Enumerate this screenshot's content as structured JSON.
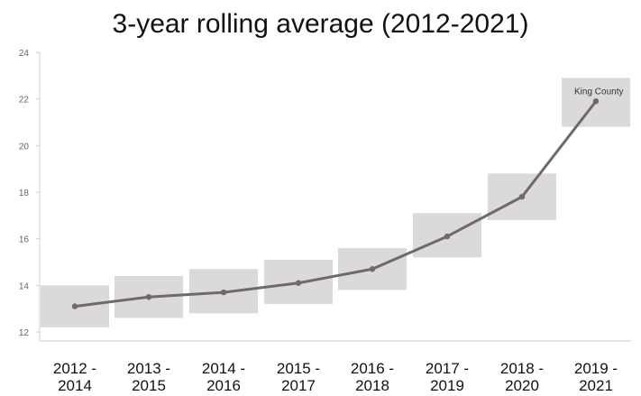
{
  "chart_data": {
    "type": "line",
    "title": "3-year rolling average (2012-2021)",
    "xlabel": "",
    "ylabel": "",
    "categories": [
      [
        "2012 -",
        "2014"
      ],
      [
        "2013 -",
        "2015"
      ],
      [
        "2014 -",
        "2016"
      ],
      [
        "2015 -",
        "2017"
      ],
      [
        "2016 -",
        "2018"
      ],
      [
        "2017 -",
        "2019"
      ],
      [
        "2018 -",
        "2020"
      ],
      [
        "2019 -",
        "2021"
      ]
    ],
    "ylim": [
      12,
      24
    ],
    "yticks": [
      "12",
      "14",
      "16",
      "18",
      "20",
      "22",
      "24"
    ],
    "series": [
      {
        "name": "King County",
        "values": [
          13.1,
          13.5,
          13.7,
          14.1,
          14.7,
          16.1,
          17.8,
          21.9
        ],
        "ci_low": [
          12.2,
          12.6,
          12.8,
          13.2,
          13.8,
          15.2,
          16.8,
          20.8
        ],
        "ci_high": [
          14.0,
          14.4,
          14.7,
          15.1,
          15.6,
          17.1,
          18.8,
          22.9
        ]
      }
    ],
    "colors": {
      "line": "#6f6a6a",
      "ci_box": "#dcd9d9",
      "axis": "#cfcfcf"
    },
    "grid": false,
    "legend": "none"
  }
}
